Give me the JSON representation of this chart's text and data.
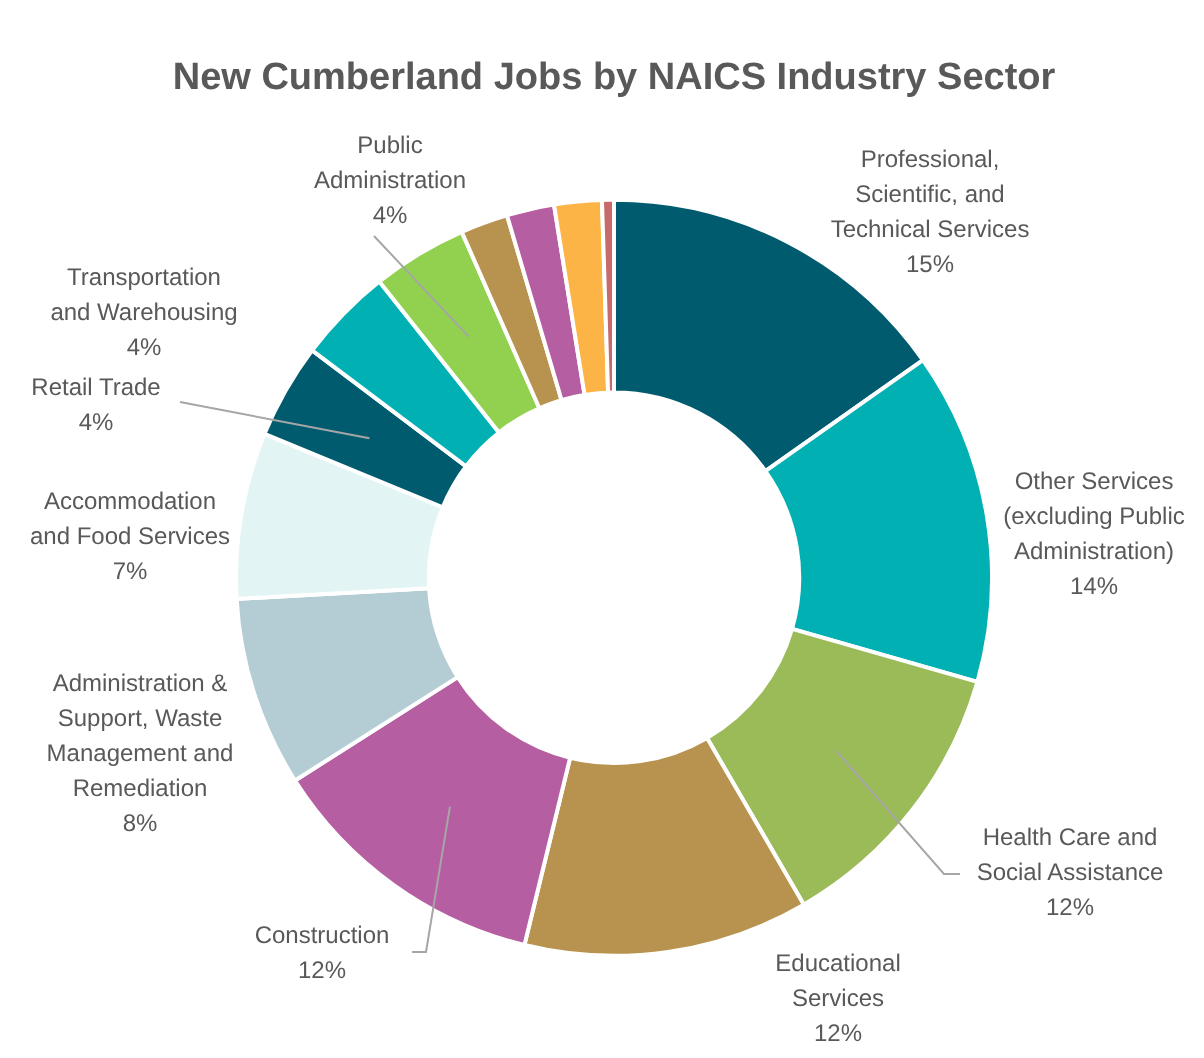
{
  "chart_data": {
    "type": "donut",
    "title": "New Cumberland Jobs by NAICS Industry Sector",
    "categories": [
      "Professional, Scientific, and Technical Services",
      "Other Services (excluding Public Administration)",
      "Health Care and Social Assistance",
      "Educational Services",
      "Construction",
      "Administration & Support, Waste Management and Remediation",
      "Accommodation and Food Services",
      "Retail Trade",
      "Transportation and Warehousing",
      "Public Administration",
      null,
      null,
      null,
      null
    ],
    "values": [
      15,
      14,
      12,
      12,
      12,
      8,
      7,
      4,
      4,
      4,
      2,
      2,
      2,
      0.5
    ],
    "colors": [
      "#005b6e",
      "#00b0b2",
      "#9bbb59",
      "#b8934f",
      "#b65ea2",
      "#b4cdd5",
      "#e3f4f5",
      "#005b6e",
      "#00b0b2",
      "#92d050",
      "#b8934f",
      "#b65ea2",
      "#fdb446",
      "#c96a6a"
    ],
    "value_labels": [
      "15%",
      "14%",
      "12%",
      "12%",
      "12%",
      "8%",
      "7%",
      "4%",
      "4%",
      "4%",
      null,
      null,
      null,
      null
    ]
  }
}
